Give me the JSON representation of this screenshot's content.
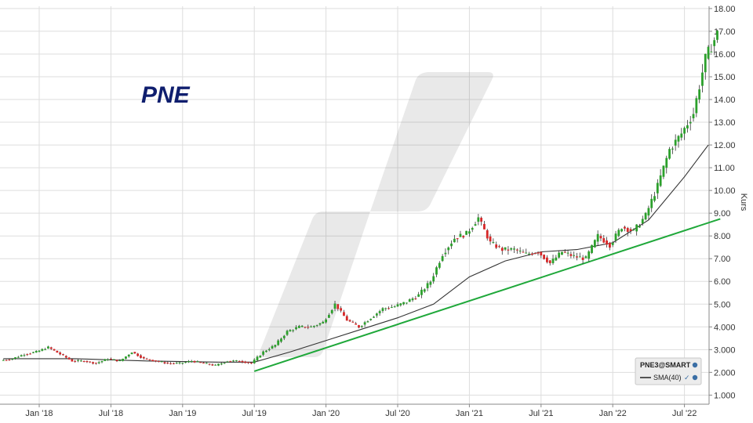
{
  "chart_data": {
    "type": "candlestick",
    "title": "PNE",
    "xlabel": "",
    "ylabel": "Kurs",
    "x_tick_labels": [
      "Jan '18",
      "Jul '18",
      "Jan '19",
      "Jul '19",
      "Jan '20",
      "Jul '20",
      "Jan '21",
      "Jul '21",
      "Jan '22",
      "Jul '22"
    ],
    "y_tick_labels": [
      "1.000",
      "2.000",
      "3.000",
      "4.000",
      "5.00",
      "6.00",
      "7.00",
      "8.00",
      "9.00",
      "10.00",
      "11.00",
      "12.00",
      "13.00",
      "14.00",
      "15.00",
      "16.00",
      "17.00",
      "18.00"
    ],
    "ylim": [
      0.6,
      18.1
    ],
    "y_axis_side": "right",
    "grid": true,
    "legend": {
      "position": "bottom-right",
      "symbol": "PNE3@SMART",
      "entries": [
        "SMA(40)"
      ]
    },
    "colors": {
      "up": "#2ca02c",
      "down": "#d62728",
      "sma": "#333333",
      "trendline": "#1fa83a",
      "title": "#0f1e6e",
      "grid": "#dddddd"
    },
    "series": [
      {
        "name": "PNE3@SMART",
        "type": "candlestick",
        "x": [
          "2017-10",
          "2017-11",
          "2017-12",
          "2018-01",
          "2018-02",
          "2018-03",
          "2018-04",
          "2018-05",
          "2018-06",
          "2018-07",
          "2018-08",
          "2018-09",
          "2018-10",
          "2018-11",
          "2018-12",
          "2019-01",
          "2019-02",
          "2019-03",
          "2019-04",
          "2019-05",
          "2019-06",
          "2019-07",
          "2019-08",
          "2019-09",
          "2019-10",
          "2019-11",
          "2019-12",
          "2020-01",
          "2020-02",
          "2020-03",
          "2020-04",
          "2020-05",
          "2020-06",
          "2020-07",
          "2020-08",
          "2020-09",
          "2020-10",
          "2020-11",
          "2020-12",
          "2021-01",
          "2021-02",
          "2021-03",
          "2021-04",
          "2021-05",
          "2021-06",
          "2021-07",
          "2021-08",
          "2021-09",
          "2021-10",
          "2021-11",
          "2021-12",
          "2022-01",
          "2022-02",
          "2022-03",
          "2022-04",
          "2022-05",
          "2022-06",
          "2022-07",
          "2022-08",
          "2022-09"
        ],
        "close": [
          2.6,
          2.8,
          2.9,
          3.1,
          2.8,
          2.5,
          2.5,
          2.4,
          2.6,
          2.5,
          2.9,
          2.6,
          2.5,
          2.4,
          2.4,
          2.5,
          2.4,
          2.3,
          2.5,
          2.5,
          2.4,
          2.9,
          3.2,
          3.8,
          4.0,
          4.0,
          4.2,
          5.0,
          4.3,
          4.0,
          4.4,
          4.8,
          4.9,
          5.1,
          5.4,
          6.0,
          7.2,
          7.9,
          8.1,
          8.8,
          7.7,
          7.4,
          7.4,
          7.2,
          7.3,
          6.8,
          7.3,
          7.1,
          7.0,
          8.0,
          7.6,
          8.4,
          8.2,
          8.9,
          10.2,
          11.8,
          12.5,
          13.4,
          15.8,
          16.9
        ]
      },
      {
        "name": "SMA(40)",
        "type": "line",
        "x": [
          "2017-10",
          "2018-04",
          "2018-10",
          "2019-04",
          "2019-07",
          "2019-10",
          "2020-01",
          "2020-04",
          "2020-07",
          "2020-10",
          "2021-01",
          "2021-04",
          "2021-07",
          "2021-10",
          "2022-01",
          "2022-04",
          "2022-07",
          "2022-09"
        ],
        "values": [
          2.6,
          2.6,
          2.5,
          2.45,
          2.45,
          2.9,
          3.4,
          3.9,
          4.4,
          5.0,
          6.2,
          6.9,
          7.3,
          7.4,
          7.7,
          8.7,
          10.6,
          12.0
        ]
      },
      {
        "name": "trendline",
        "type": "line",
        "x": [
          "2019-07",
          "2022-10"
        ],
        "values": [
          2.05,
          8.75
        ]
      }
    ]
  }
}
